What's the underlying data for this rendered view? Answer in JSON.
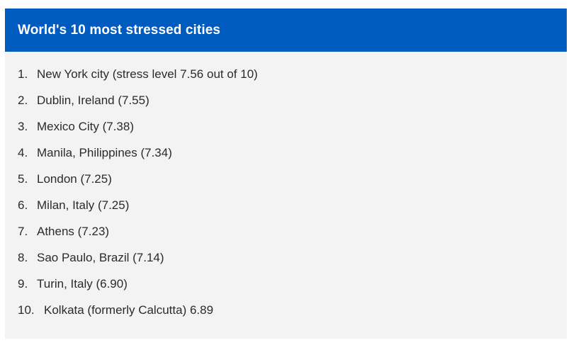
{
  "box": {
    "title": "World's 10 most stressed cities",
    "accent_color": "#005bbf",
    "background_color": "#f3f3f3",
    "items": [
      {
        "number": "1.",
        "text": "New York city (stress level 7.56 out of 10)"
      },
      {
        "number": "2.",
        "text": "Dublin, Ireland (7.55)"
      },
      {
        "number": "3.",
        "text": "Mexico City (7.38)"
      },
      {
        "number": "4.",
        "text": "Manila, Philippines (7.34)"
      },
      {
        "number": "5.",
        "text": "London (7.25)"
      },
      {
        "number": "6.",
        "text": "Milan, Italy (7.25)"
      },
      {
        "number": "7.",
        "text": "Athens (7.23)"
      },
      {
        "number": "8.",
        "text": "Sao Paulo, Brazil (7.14)"
      },
      {
        "number": "9.",
        "text": "Turin, Italy (6.90)"
      },
      {
        "number": "10.",
        "text": "Kolkata (formerly Calcutta) 6.89"
      }
    ]
  }
}
